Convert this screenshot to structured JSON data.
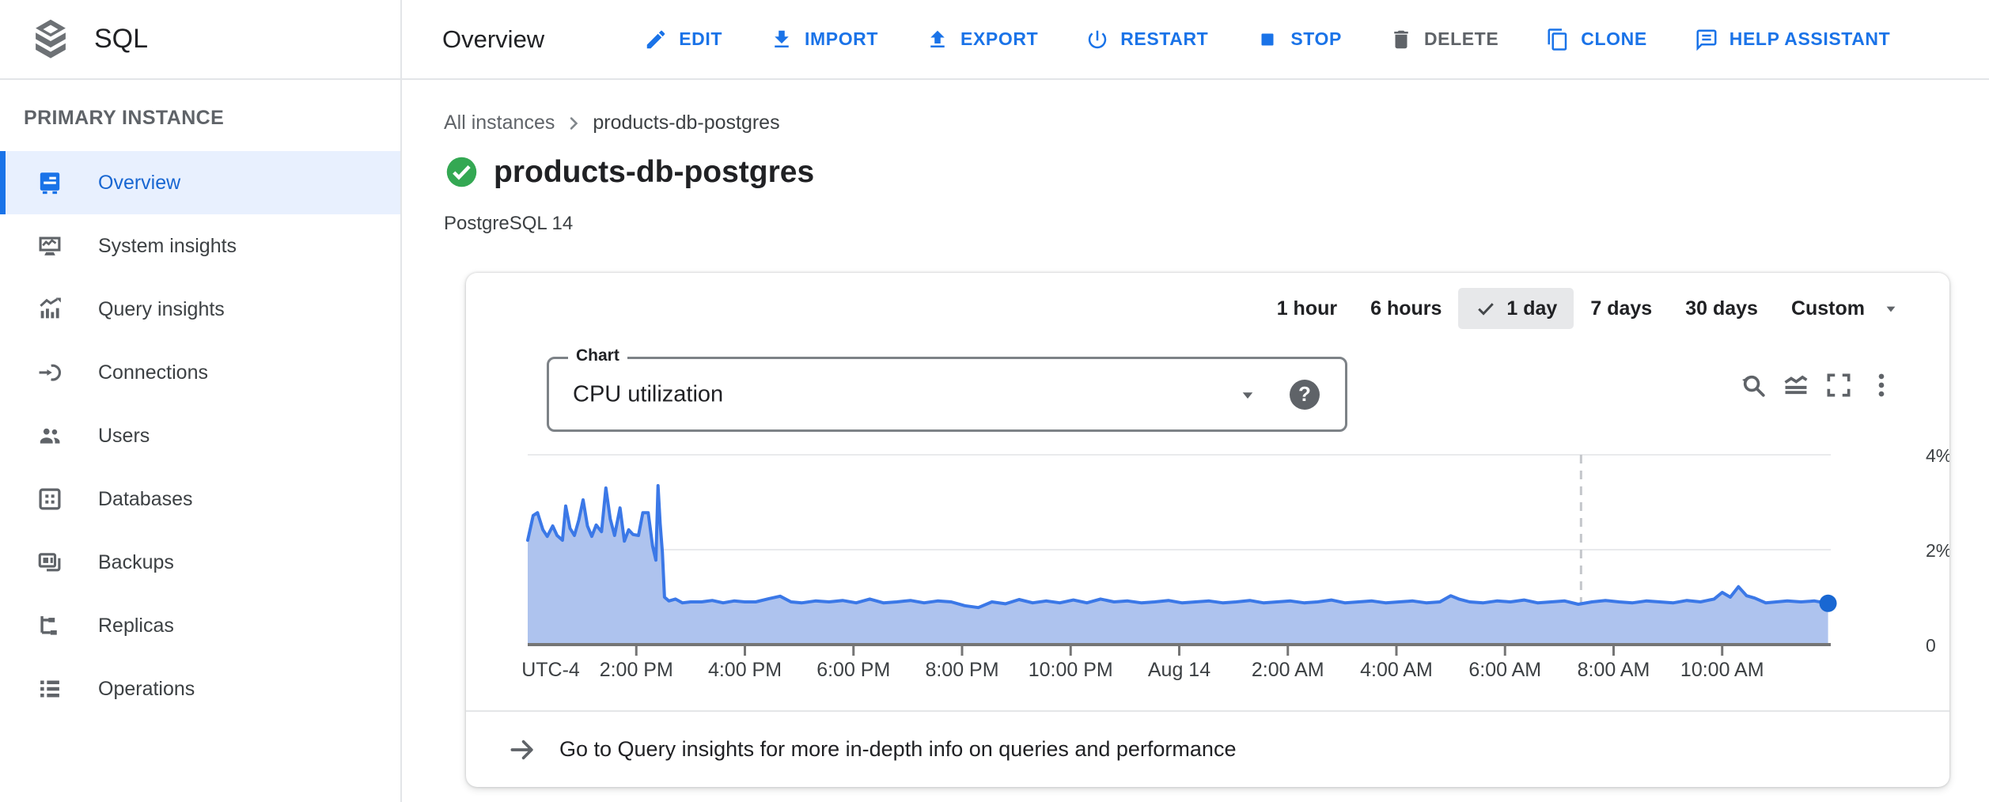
{
  "colors": {
    "accent": "#1a73e8",
    "accent_dark": "#1967d2",
    "status_ok": "#34a853",
    "selected_bg": "#e8f0fe",
    "chip_bg": "#e7e8ea",
    "chart_line": "#3b78e7",
    "chart_fill": "#aec3ee",
    "grid": "#e9eaec",
    "axis": "#757575",
    "dashed_cursor": "#c4c7cb"
  },
  "topbar": {
    "product": "SQL",
    "title": "Overview",
    "actions": [
      {
        "label": "EDIT",
        "icon": "edit-icon",
        "enabled": true
      },
      {
        "label": "IMPORT",
        "icon": "import-icon",
        "enabled": true
      },
      {
        "label": "EXPORT",
        "icon": "export-icon",
        "enabled": true
      },
      {
        "label": "RESTART",
        "icon": "restart-icon",
        "enabled": true
      },
      {
        "label": "STOP",
        "icon": "stop-icon",
        "enabled": true
      },
      {
        "label": "DELETE",
        "icon": "delete-icon",
        "enabled": false
      },
      {
        "label": "CLONE",
        "icon": "clone-icon",
        "enabled": true
      },
      {
        "label": "HELP ASSISTANT",
        "icon": "help-assistant-icon",
        "enabled": true
      }
    ]
  },
  "sidebar": {
    "section": "PRIMARY INSTANCE",
    "items": [
      {
        "label": "Overview",
        "icon": "overview-icon",
        "selected": true
      },
      {
        "label": "System insights",
        "icon": "system-insights-icon",
        "selected": false
      },
      {
        "label": "Query insights",
        "icon": "query-insights-icon",
        "selected": false
      },
      {
        "label": "Connections",
        "icon": "connections-icon",
        "selected": false
      },
      {
        "label": "Users",
        "icon": "users-icon",
        "selected": false
      },
      {
        "label": "Databases",
        "icon": "databases-icon",
        "selected": false
      },
      {
        "label": "Backups",
        "icon": "backups-icon",
        "selected": false
      },
      {
        "label": "Replicas",
        "icon": "replicas-icon",
        "selected": false
      },
      {
        "label": "Operations",
        "icon": "operations-icon",
        "selected": false
      }
    ]
  },
  "page": {
    "breadcrumb": [
      {
        "label": "All instances"
      },
      {
        "label": "products-db-postgres"
      }
    ],
    "title": "products-db-postgres",
    "status": "running",
    "subtitle": "PostgreSQL 14"
  },
  "card": {
    "range_options": [
      {
        "label": "1 hour",
        "selected": false,
        "has_caret": false
      },
      {
        "label": "6 hours",
        "selected": false,
        "has_caret": false
      },
      {
        "label": "1 day",
        "selected": true,
        "has_caret": false
      },
      {
        "label": "7 days",
        "selected": false,
        "has_caret": false
      },
      {
        "label": "30 days",
        "selected": false,
        "has_caret": false
      },
      {
        "label": "Custom",
        "selected": false,
        "has_caret": true
      }
    ],
    "chart_select": {
      "label": "Chart",
      "value": "CPU utilization",
      "help_glyph": "?"
    },
    "chart_actions": [
      {
        "icon": "zoom-reset-icon"
      },
      {
        "icon": "area-chart-icon"
      },
      {
        "icon": "fullscreen-icon"
      },
      {
        "icon": "more-vert-icon"
      }
    ],
    "footer_link": "Go to Query insights for more in-depth info on queries and performance"
  },
  "chart_data": {
    "type": "area",
    "title": "CPU utilization",
    "unit": "%",
    "grid": true,
    "legend": "none",
    "xlim_hours": [
      0,
      24
    ],
    "ylim": [
      0,
      4
    ],
    "y_ticks": [
      {
        "label": "4%",
        "value": 4
      },
      {
        "label": "2%",
        "value": 2
      },
      {
        "label": "0",
        "value": 0
      }
    ],
    "x_axis_note": "UTC-4",
    "x_ticks": [
      {
        "label": "2:00 PM",
        "hour": 2
      },
      {
        "label": "4:00 PM",
        "hour": 4
      },
      {
        "label": "6:00 PM",
        "hour": 6
      },
      {
        "label": "8:00 PM",
        "hour": 8
      },
      {
        "label": "10:00 PM",
        "hour": 10
      },
      {
        "label": "Aug 14",
        "hour": 12
      },
      {
        "label": "2:00 AM",
        "hour": 14
      },
      {
        "label": "4:00 AM",
        "hour": 16
      },
      {
        "label": "6:00 AM",
        "hour": 18
      },
      {
        "label": "8:00 AM",
        "hour": 20
      },
      {
        "label": "10:00 AM",
        "hour": 22
      }
    ],
    "time_cursor_hour": 19.4,
    "series": [
      {
        "name": "CPU utilization",
        "points": [
          [
            0,
            2.2
          ],
          [
            0.1,
            2.72
          ],
          [
            0.18,
            2.78
          ],
          [
            0.28,
            2.42
          ],
          [
            0.36,
            2.28
          ],
          [
            0.46,
            2.5
          ],
          [
            0.54,
            2.3
          ],
          [
            0.64,
            2.2
          ],
          [
            0.7,
            2.92
          ],
          [
            0.78,
            2.45
          ],
          [
            0.86,
            2.3
          ],
          [
            0.94,
            2.62
          ],
          [
            1.02,
            3.05
          ],
          [
            1.1,
            2.5
          ],
          [
            1.18,
            2.28
          ],
          [
            1.26,
            2.52
          ],
          [
            1.36,
            2.38
          ],
          [
            1.44,
            3.3
          ],
          [
            1.52,
            2.65
          ],
          [
            1.6,
            2.3
          ],
          [
            1.7,
            2.88
          ],
          [
            1.78,
            2.18
          ],
          [
            1.86,
            2.42
          ],
          [
            1.94,
            2.32
          ],
          [
            2.04,
            2.3
          ],
          [
            2.12,
            2.78
          ],
          [
            2.22,
            2.78
          ],
          [
            2.3,
            2.08
          ],
          [
            2.36,
            1.78
          ],
          [
            2.4,
            3.35
          ],
          [
            2.44,
            2.55
          ],
          [
            2.48,
            1.95
          ],
          [
            2.52,
            1.0
          ],
          [
            2.6,
            0.92
          ],
          [
            2.72,
            0.96
          ],
          [
            2.85,
            0.88
          ],
          [
            3.0,
            0.9
          ],
          [
            3.2,
            0.9
          ],
          [
            3.4,
            0.93
          ],
          [
            3.6,
            0.88
          ],
          [
            3.8,
            0.92
          ],
          [
            4.0,
            0.9
          ],
          [
            4.2,
            0.9
          ],
          [
            4.45,
            0.97
          ],
          [
            4.65,
            1.02
          ],
          [
            4.85,
            0.9
          ],
          [
            5.05,
            0.88
          ],
          [
            5.3,
            0.92
          ],
          [
            5.55,
            0.9
          ],
          [
            5.8,
            0.93
          ],
          [
            6.05,
            0.88
          ],
          [
            6.3,
            0.96
          ],
          [
            6.55,
            0.88
          ],
          [
            6.8,
            0.9
          ],
          [
            7.05,
            0.93
          ],
          [
            7.3,
            0.88
          ],
          [
            7.55,
            0.92
          ],
          [
            7.8,
            0.9
          ],
          [
            8.05,
            0.82
          ],
          [
            8.3,
            0.78
          ],
          [
            8.55,
            0.9
          ],
          [
            8.8,
            0.86
          ],
          [
            9.05,
            0.95
          ],
          [
            9.3,
            0.88
          ],
          [
            9.55,
            0.92
          ],
          [
            9.8,
            0.88
          ],
          [
            10.05,
            0.94
          ],
          [
            10.3,
            0.88
          ],
          [
            10.55,
            0.96
          ],
          [
            10.8,
            0.9
          ],
          [
            11.05,
            0.92
          ],
          [
            11.3,
            0.88
          ],
          [
            11.55,
            0.9
          ],
          [
            11.8,
            0.93
          ],
          [
            12.05,
            0.88
          ],
          [
            12.3,
            0.9
          ],
          [
            12.55,
            0.92
          ],
          [
            12.8,
            0.88
          ],
          [
            13.05,
            0.9
          ],
          [
            13.3,
            0.93
          ],
          [
            13.55,
            0.88
          ],
          [
            13.8,
            0.9
          ],
          [
            14.05,
            0.92
          ],
          [
            14.3,
            0.88
          ],
          [
            14.55,
            0.9
          ],
          [
            14.8,
            0.94
          ],
          [
            15.05,
            0.88
          ],
          [
            15.3,
            0.9
          ],
          [
            15.55,
            0.92
          ],
          [
            15.8,
            0.88
          ],
          [
            16.05,
            0.9
          ],
          [
            16.3,
            0.92
          ],
          [
            16.55,
            0.88
          ],
          [
            16.8,
            0.9
          ],
          [
            17.0,
            1.03
          ],
          [
            17.15,
            0.96
          ],
          [
            17.35,
            0.9
          ],
          [
            17.6,
            0.88
          ],
          [
            17.85,
            0.92
          ],
          [
            18.1,
            0.9
          ],
          [
            18.35,
            0.94
          ],
          [
            18.6,
            0.88
          ],
          [
            18.85,
            0.9
          ],
          [
            19.1,
            0.92
          ],
          [
            19.35,
            0.85
          ],
          [
            19.6,
            0.9
          ],
          [
            19.85,
            0.93
          ],
          [
            20.1,
            0.9
          ],
          [
            20.35,
            0.88
          ],
          [
            20.6,
            0.92
          ],
          [
            20.85,
            0.9
          ],
          [
            21.1,
            0.88
          ],
          [
            21.35,
            0.93
          ],
          [
            21.6,
            0.9
          ],
          [
            21.85,
            0.96
          ],
          [
            22.0,
            1.1
          ],
          [
            22.15,
            1.0
          ],
          [
            22.3,
            1.22
          ],
          [
            22.45,
            1.03
          ],
          [
            22.6,
            0.98
          ],
          [
            22.8,
            0.88
          ],
          [
            23.0,
            0.9
          ],
          [
            23.2,
            0.92
          ],
          [
            23.45,
            0.9
          ],
          [
            23.7,
            0.92
          ],
          [
            23.95,
            0.87
          ]
        ]
      }
    ]
  }
}
